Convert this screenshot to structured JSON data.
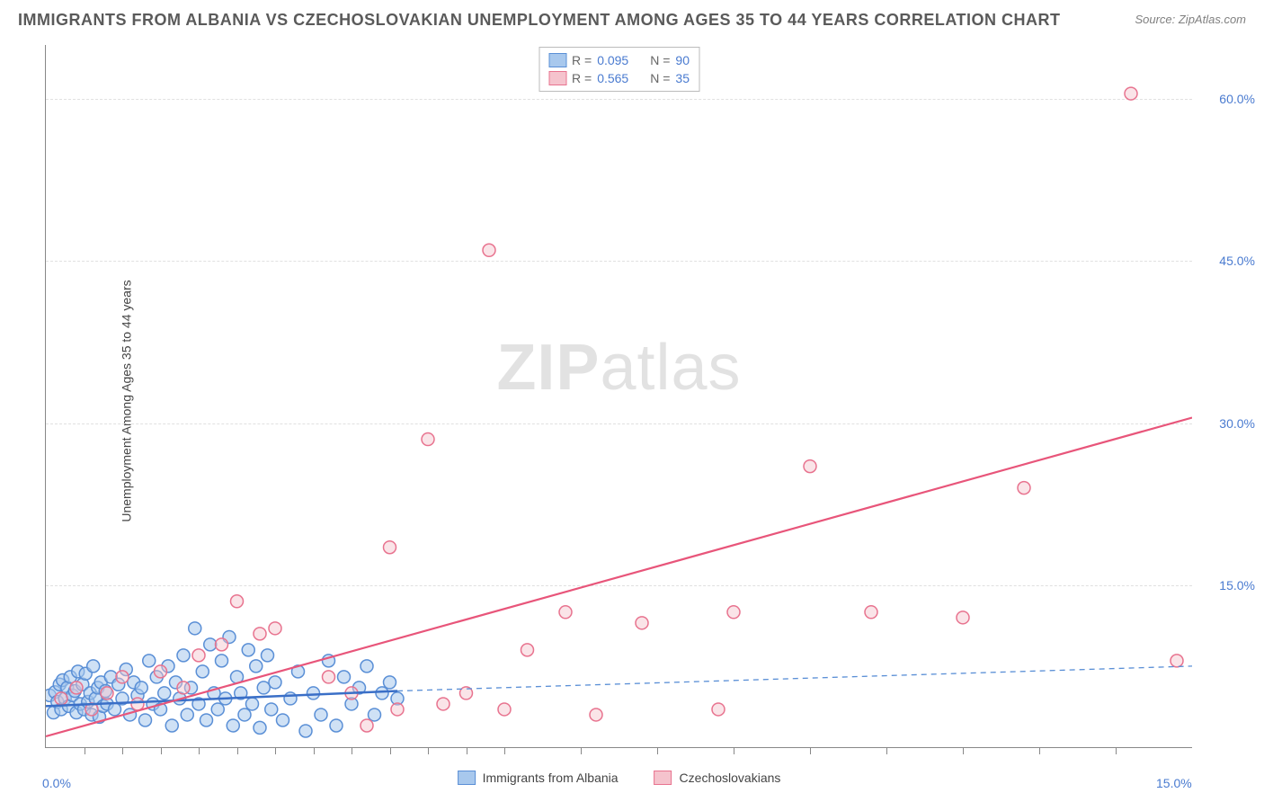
{
  "title": "IMMIGRANTS FROM ALBANIA VS CZECHOSLOVAKIAN UNEMPLOYMENT AMONG AGES 35 TO 44 YEARS CORRELATION CHART",
  "source": "Source: ZipAtlas.com",
  "y_axis_label": "Unemployment Among Ages 35 to 44 years",
  "watermark_bold": "ZIP",
  "watermark_light": "atlas",
  "chart": {
    "type": "scatter",
    "xlim": [
      0,
      15
    ],
    "ylim": [
      0,
      65
    ],
    "x_ticks_minor": [
      0.5,
      1,
      1.5,
      2,
      2.5,
      3,
      3.5,
      4,
      4.5,
      5,
      5.5,
      6,
      7,
      8,
      9,
      10,
      11,
      12,
      13,
      14
    ],
    "x_tick_labels": [
      {
        "v": 0,
        "label": "0.0%"
      },
      {
        "v": 15,
        "label": "15.0%"
      }
    ],
    "y_gridlines": [
      15,
      30,
      45,
      60
    ],
    "y_tick_labels": [
      {
        "v": 15,
        "label": "15.0%"
      },
      {
        "v": 30,
        "label": "30.0%"
      },
      {
        "v": 45,
        "label": "45.0%"
      },
      {
        "v": 60,
        "label": "60.0%"
      }
    ],
    "background_color": "#ffffff",
    "grid_color": "#e0e0e0",
    "axis_color": "#888888",
    "marker_radius": 7,
    "marker_stroke_width": 1.5,
    "series": [
      {
        "name": "Immigrants from Albania",
        "color_fill": "#a8c8ed",
        "color_stroke": "#5a8fd6",
        "fill_opacity": 0.55,
        "R": "0.095",
        "N": "90",
        "trend": {
          "solid": {
            "x1": 0,
            "y1": 3.8,
            "x2": 4.6,
            "y2": 5.2,
            "width": 2.5,
            "color": "#3a6fc7"
          },
          "dashed": {
            "x1": 4.6,
            "y1": 5.2,
            "x2": 15,
            "y2": 7.5,
            "color": "#5a8fd6",
            "dash": "6,5",
            "width": 1.3
          }
        },
        "points": [
          [
            0.05,
            4.8
          ],
          [
            0.1,
            3.2
          ],
          [
            0.12,
            5.1
          ],
          [
            0.15,
            4.2
          ],
          [
            0.18,
            5.8
          ],
          [
            0.2,
            3.5
          ],
          [
            0.22,
            6.2
          ],
          [
            0.25,
            4.5
          ],
          [
            0.28,
            5.5
          ],
          [
            0.3,
            3.8
          ],
          [
            0.32,
            6.5
          ],
          [
            0.35,
            4.8
          ],
          [
            0.38,
            5.2
          ],
          [
            0.4,
            3.2
          ],
          [
            0.42,
            7.0
          ],
          [
            0.45,
            4.0
          ],
          [
            0.48,
            5.8
          ],
          [
            0.5,
            3.5
          ],
          [
            0.52,
            6.8
          ],
          [
            0.55,
            4.2
          ],
          [
            0.58,
            5.0
          ],
          [
            0.6,
            3.0
          ],
          [
            0.62,
            7.5
          ],
          [
            0.65,
            4.5
          ],
          [
            0.68,
            5.5
          ],
          [
            0.7,
            2.8
          ],
          [
            0.72,
            6.0
          ],
          [
            0.75,
            3.8
          ],
          [
            0.78,
            5.2
          ],
          [
            0.8,
            4.0
          ],
          [
            0.85,
            6.5
          ],
          [
            0.9,
            3.5
          ],
          [
            0.95,
            5.8
          ],
          [
            1.0,
            4.5
          ],
          [
            1.05,
            7.2
          ],
          [
            1.1,
            3.0
          ],
          [
            1.15,
            6.0
          ],
          [
            1.2,
            4.8
          ],
          [
            1.25,
            5.5
          ],
          [
            1.3,
            2.5
          ],
          [
            1.35,
            8.0
          ],
          [
            1.4,
            4.0
          ],
          [
            1.45,
            6.5
          ],
          [
            1.5,
            3.5
          ],
          [
            1.55,
            5.0
          ],
          [
            1.6,
            7.5
          ],
          [
            1.65,
            2.0
          ],
          [
            1.7,
            6.0
          ],
          [
            1.75,
            4.5
          ],
          [
            1.8,
            8.5
          ],
          [
            1.85,
            3.0
          ],
          [
            1.9,
            5.5
          ],
          [
            1.95,
            11.0
          ],
          [
            2.0,
            4.0
          ],
          [
            2.05,
            7.0
          ],
          [
            2.1,
            2.5
          ],
          [
            2.15,
            9.5
          ],
          [
            2.2,
            5.0
          ],
          [
            2.25,
            3.5
          ],
          [
            2.3,
            8.0
          ],
          [
            2.35,
            4.5
          ],
          [
            2.4,
            10.2
          ],
          [
            2.45,
            2.0
          ],
          [
            2.5,
            6.5
          ],
          [
            2.55,
            5.0
          ],
          [
            2.6,
            3.0
          ],
          [
            2.65,
            9.0
          ],
          [
            2.7,
            4.0
          ],
          [
            2.75,
            7.5
          ],
          [
            2.8,
            1.8
          ],
          [
            2.85,
            5.5
          ],
          [
            2.9,
            8.5
          ],
          [
            2.95,
            3.5
          ],
          [
            3.0,
            6.0
          ],
          [
            3.1,
            2.5
          ],
          [
            3.2,
            4.5
          ],
          [
            3.3,
            7.0
          ],
          [
            3.4,
            1.5
          ],
          [
            3.5,
            5.0
          ],
          [
            3.6,
            3.0
          ],
          [
            3.7,
            8.0
          ],
          [
            3.8,
            2.0
          ],
          [
            3.9,
            6.5
          ],
          [
            4.0,
            4.0
          ],
          [
            4.1,
            5.5
          ],
          [
            4.2,
            7.5
          ],
          [
            4.3,
            3.0
          ],
          [
            4.4,
            5.0
          ],
          [
            4.5,
            6.0
          ],
          [
            4.6,
            4.5
          ]
        ]
      },
      {
        "name": "Czechoslovakians",
        "color_fill": "#f5c3cd",
        "color_stroke": "#e8738f",
        "fill_opacity": 0.45,
        "R": "0.565",
        "N": "35",
        "trend": {
          "solid": {
            "x1": 0,
            "y1": 1.0,
            "x2": 15,
            "y2": 30.5,
            "width": 2.2,
            "color": "#e8557a"
          }
        },
        "points": [
          [
            0.2,
            4.5
          ],
          [
            0.4,
            5.5
          ],
          [
            0.6,
            3.5
          ],
          [
            0.8,
            5.0
          ],
          [
            1.0,
            6.5
          ],
          [
            1.2,
            4.0
          ],
          [
            1.5,
            7.0
          ],
          [
            1.8,
            5.5
          ],
          [
            2.0,
            8.5
          ],
          [
            2.3,
            9.5
          ],
          [
            2.5,
            13.5
          ],
          [
            2.8,
            10.5
          ],
          [
            3.0,
            11.0
          ],
          [
            3.7,
            6.5
          ],
          [
            4.0,
            5.0
          ],
          [
            4.2,
            2.0
          ],
          [
            4.5,
            18.5
          ],
          [
            4.6,
            3.5
          ],
          [
            5.0,
            28.5
          ],
          [
            5.2,
            4.0
          ],
          [
            5.5,
            5.0
          ],
          [
            5.8,
            46.0
          ],
          [
            6.0,
            3.5
          ],
          [
            6.3,
            9.0
          ],
          [
            6.8,
            12.5
          ],
          [
            7.2,
            3.0
          ],
          [
            7.8,
            11.5
          ],
          [
            8.8,
            3.5
          ],
          [
            9.0,
            12.5
          ],
          [
            10.0,
            26.0
          ],
          [
            10.8,
            12.5
          ],
          [
            12.0,
            12.0
          ],
          [
            12.8,
            24.0
          ],
          [
            14.2,
            60.5
          ],
          [
            14.8,
            8.0
          ]
        ]
      }
    ]
  },
  "legend_top": {
    "r_label": "R =",
    "n_label": "N ="
  },
  "legend_bottom": [
    {
      "swatch_fill": "#a8c8ed",
      "swatch_stroke": "#5a8fd6",
      "label": "Immigrants from Albania"
    },
    {
      "swatch_fill": "#f5c3cd",
      "swatch_stroke": "#e8738f",
      "label": "Czechoslovakians"
    }
  ]
}
